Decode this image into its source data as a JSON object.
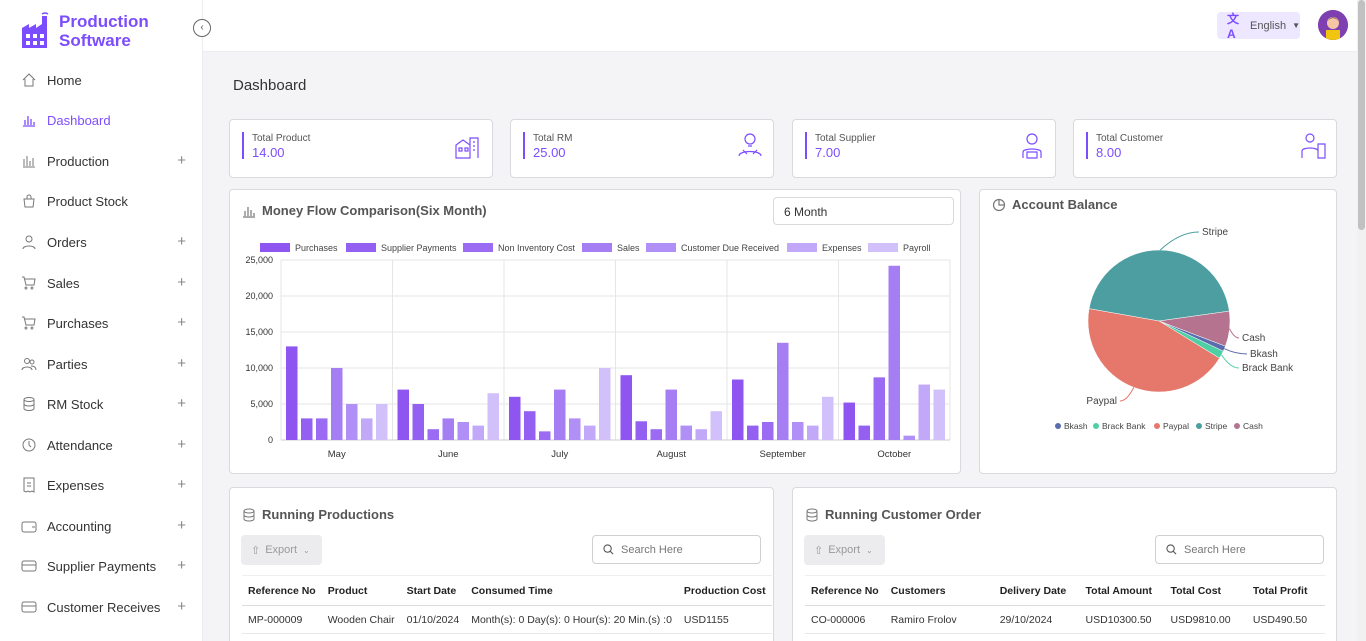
{
  "brand": {
    "line1": "Production",
    "line2": "Software"
  },
  "sidebar": {
    "items": [
      {
        "label": "Home",
        "icon": "home-icon",
        "expandable": false
      },
      {
        "label": "Dashboard",
        "icon": "chart-icon",
        "expandable": false,
        "active": true
      },
      {
        "label": "Production",
        "icon": "bar-chart-icon",
        "expandable": true
      },
      {
        "label": "Product Stock",
        "icon": "bag-icon",
        "expandable": false
      },
      {
        "label": "Orders",
        "icon": "user-icon",
        "expandable": true
      },
      {
        "label": "Sales",
        "icon": "cart-icon",
        "expandable": true
      },
      {
        "label": "Purchases",
        "icon": "cart-icon",
        "expandable": true
      },
      {
        "label": "Parties",
        "icon": "users-icon",
        "expandable": true
      },
      {
        "label": "RM Stock",
        "icon": "database-icon",
        "expandable": true
      },
      {
        "label": "Attendance",
        "icon": "clock-icon",
        "expandable": true
      },
      {
        "label": "Expenses",
        "icon": "receipt-icon",
        "expandable": true
      },
      {
        "label": "Accounting",
        "icon": "wallet-icon",
        "expandable": true
      },
      {
        "label": "Supplier Payments",
        "icon": "payment-icon",
        "expandable": true
      },
      {
        "label": "Customer Receives",
        "icon": "payment-icon",
        "expandable": true
      }
    ]
  },
  "topbar": {
    "language": "English"
  },
  "page": {
    "title": "Dashboard"
  },
  "stats": [
    {
      "label": "Total Product",
      "value": "14.00",
      "icon": "product-icon"
    },
    {
      "label": "Total RM",
      "value": "25.00",
      "icon": "raw-material-icon"
    },
    {
      "label": "Total Supplier",
      "value": "7.00",
      "icon": "supplier-icon"
    },
    {
      "label": "Total Customer",
      "value": "8.00",
      "icon": "customer-icon"
    }
  ],
  "money_flow": {
    "title": "Money Flow Comparison(Six Month)",
    "period": "6 Month"
  },
  "account_balance": {
    "title": "Account Balance"
  },
  "colors": {
    "accent": "#7c4dff",
    "series": [
      "#8e55f0",
      "#9460f2",
      "#9b6cf3",
      "#a57ef4",
      "#b08ff6",
      "#c1a8f8",
      "#d2c0fa"
    ],
    "pie": {
      "Bkash": "#5b6cae",
      "Brack Bank": "#4fd0a4",
      "Paypal": "#e5776b",
      "Stripe": "#4d9ea0",
      "Cash": "#b5738f"
    }
  },
  "chart_data": [
    {
      "type": "bar",
      "title": "Money Flow Comparison(Six Month)",
      "categories": [
        "May",
        "June",
        "July",
        "August",
        "September",
        "October"
      ],
      "ylim": [
        0,
        25000
      ],
      "yticks": [
        "0",
        "5,000",
        "10,000",
        "15,000",
        "20,000",
        "25,000"
      ],
      "series": [
        {
          "name": "Purchases",
          "values": [
            13000,
            7000,
            6000,
            9000,
            8400,
            5200
          ]
        },
        {
          "name": "Supplier Payments",
          "values": [
            3000,
            5000,
            4000,
            2600,
            2000,
            2000
          ]
        },
        {
          "name": "Non Inventory Cost",
          "values": [
            3000,
            1500,
            1200,
            1500,
            2500,
            8700
          ]
        },
        {
          "name": "Sales",
          "values": [
            10000,
            3000,
            7000,
            7000,
            13500,
            24200
          ]
        },
        {
          "name": "Customer Due Received",
          "values": [
            5000,
            2500,
            3000,
            2000,
            2500,
            600
          ]
        },
        {
          "name": "Expenses",
          "values": [
            3000,
            2000,
            2000,
            1500,
            2000,
            7700
          ]
        },
        {
          "name": "Payroll",
          "values": [
            5000,
            6500,
            10000,
            4000,
            6000,
            7000
          ]
        }
      ]
    },
    {
      "type": "pie",
      "title": "Account Balance",
      "labels": [
        "Bkash",
        "Brack Bank",
        "Paypal",
        "Stripe",
        "Cash"
      ],
      "values": [
        1.2,
        1.8,
        44,
        45,
        8
      ]
    }
  ],
  "running_productions": {
    "title": "Running Productions",
    "export_label": "Export",
    "search_placeholder": "Search Here",
    "columns": [
      "Reference No",
      "Product",
      "Start Date",
      "Consumed Time",
      "Production Cost"
    ],
    "rows": [
      [
        "MP-000009",
        "Wooden Chair",
        "01/10/2024",
        "Month(s): 0 Day(s): 0 Hour(s): 20 Min.(s) :0",
        "USD1155"
      ]
    ]
  },
  "running_orders": {
    "title": "Running Customer Order",
    "export_label": "Export",
    "search_placeholder": "Search Here",
    "columns": [
      "Reference No",
      "Customers",
      "Delivery Date",
      "Total Amount",
      "Total Cost",
      "Total Profit"
    ],
    "rows": [
      [
        "CO-000006",
        "Ramiro Frolov",
        "29/10/2024",
        "USD10300.50",
        "USD9810.00",
        "USD490.50"
      ]
    ]
  }
}
